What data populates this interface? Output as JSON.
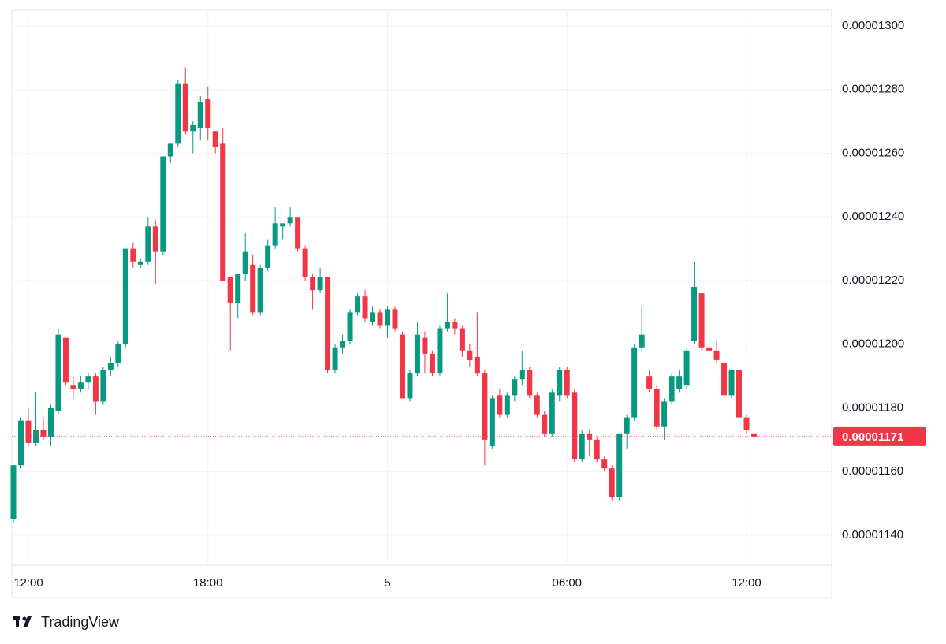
{
  "chart_data": {
    "type": "candlestick",
    "brand": "TradingView",
    "up_color": "#089981",
    "down_color": "#f23645",
    "grid": true,
    "ylim": [
      1.13e-05,
      1.305e-05
    ],
    "yticks": [
      {
        "value": 1.14e-05,
        "label": "0.00001140"
      },
      {
        "value": 1.16e-05,
        "label": "0.00001160"
      },
      {
        "value": 1.18e-05,
        "label": "0.00001180"
      },
      {
        "value": 1.2e-05,
        "label": "0.00001200"
      },
      {
        "value": 1.22e-05,
        "label": "0.00001220"
      },
      {
        "value": 1.24e-05,
        "label": "0.00001240"
      },
      {
        "value": 1.26e-05,
        "label": "0.00001260"
      },
      {
        "value": 1.28e-05,
        "label": "0.00001280"
      },
      {
        "value": 1.3e-05,
        "label": "0.00001300"
      }
    ],
    "last_price": {
      "value": 1.171e-05,
      "label": "0.00001171"
    },
    "categories": [
      null,
      null,
      "12:00",
      null,
      null,
      null,
      null,
      null,
      null,
      null,
      null,
      null,
      null,
      null,
      null,
      null,
      null,
      null,
      null,
      null,
      null,
      null,
      null,
      null,
      null,
      null,
      "18:00",
      null,
      null,
      null,
      null,
      null,
      null,
      null,
      null,
      null,
      null,
      null,
      null,
      null,
      null,
      null,
      null,
      null,
      null,
      null,
      null,
      null,
      null,
      null,
      "5",
      null,
      null,
      null,
      null,
      null,
      null,
      null,
      null,
      null,
      null,
      null,
      null,
      null,
      null,
      null,
      null,
      null,
      null,
      null,
      null,
      null,
      null,
      null,
      "06:00",
      null,
      null,
      null,
      null,
      null,
      null,
      null,
      null,
      null,
      null,
      null,
      null,
      null,
      null,
      null,
      null,
      null,
      null,
      null,
      null,
      null,
      null,
      null,
      "12:00",
      null
    ],
    "open": [
      1.145e-05,
      1.162e-05,
      1.176e-05,
      1.169e-05,
      1.173e-05,
      1.171e-05,
      1.179e-05,
      1.202e-05,
      1.187e-05,
      1.186e-05,
      1.188e-05,
      1.19e-05,
      1.182e-05,
      1.192e-05,
      1.194e-05,
      1.2e-05,
      1.23e-05,
      1.225e-05,
      1.226e-05,
      1.237e-05,
      1.229e-05,
      1.259e-05,
      1.263e-05,
      1.282e-05,
      1.267e-05,
      1.268e-05,
      1.277e-05,
      1.267e-05,
      1.263e-05,
      1.221e-05,
      1.213e-05,
      1.222e-05,
      1.225e-05,
      1.21e-05,
      1.224e-05,
      1.231e-05,
      1.237e-05,
      1.238e-05,
      1.24e-05,
      1.23e-05,
      1.221e-05,
      1.217e-05,
      1.221e-05,
      1.192e-05,
      1.199e-05,
      1.201e-05,
      1.21e-05,
      1.215e-05,
      1.207e-05,
      1.21e-05,
      1.206e-05,
      1.211e-05,
      1.203e-05,
      1.183e-05,
      1.191e-05,
      1.202e-05,
      1.197e-05,
      1.191e-05,
      1.205e-05,
      1.207e-05,
      1.205e-05,
      1.198e-05,
      1.196e-05,
      1.191e-05,
      1.168e-05,
      1.184e-05,
      1.178e-05,
      1.184e-05,
      1.189e-05,
      1.192e-05,
      1.184e-05,
      1.178e-05,
      1.172e-05,
      1.184e-05,
      1.192e-05,
      1.185e-05,
      1.164e-05,
      1.172e-05,
      1.17e-05,
      1.164e-05,
      1.161e-05,
      1.152e-05,
      1.172e-05,
      1.177e-05,
      1.199e-05,
      1.19e-05,
      1.186e-05,
      1.174e-05,
      1.182e-05,
      1.186e-05,
      1.187e-05,
      1.201e-05,
      1.216e-05,
      1.199e-05,
      1.198e-05,
      1.194e-05,
      1.184e-05,
      1.192e-05,
      1.177e-05,
      1.172e-05
    ],
    "high": [
      1.162e-05,
      1.177e-05,
      1.18e-05,
      1.185e-05,
      1.177e-05,
      1.181e-05,
      1.205e-05,
      1.202e-05,
      1.19e-05,
      1.19e-05,
      1.191e-05,
      1.191e-05,
      1.193e-05,
      1.196e-05,
      1.201e-05,
      1.23e-05,
      1.232e-05,
      1.227e-05,
      1.24e-05,
      1.239e-05,
      1.259e-05,
      1.263e-05,
      1.283e-05,
      1.287e-05,
      1.27e-05,
      1.278e-05,
      1.281e-05,
      1.267e-05,
      1.268e-05,
      1.221e-05,
      1.222e-05,
      1.235e-05,
      1.228e-05,
      1.225e-05,
      1.233e-05,
      1.243e-05,
      1.238e-05,
      1.243e-05,
      1.24e-05,
      1.231e-05,
      1.222e-05,
      1.224e-05,
      1.221e-05,
      1.2e-05,
      1.203e-05,
      1.211e-05,
      1.216e-05,
      1.217e-05,
      1.212e-05,
      1.211e-05,
      1.212e-05,
      1.212e-05,
      1.204e-05,
      1.192e-05,
      1.207e-05,
      1.204e-05,
      1.198e-05,
      1.206e-05,
      1.216e-05,
      1.208e-05,
      1.206e-05,
      1.2e-05,
      1.21e-05,
      1.192e-05,
      1.184e-05,
      1.186e-05,
      1.185e-05,
      1.19e-05,
      1.198e-05,
      1.193e-05,
      1.185e-05,
      1.179e-05,
      1.186e-05,
      1.193e-05,
      1.193e-05,
      1.186e-05,
      1.173e-05,
      1.173e-05,
      1.171e-05,
      1.165e-05,
      1.162e-05,
      1.172e-05,
      1.178e-05,
      1.2e-05,
      1.212e-05,
      1.192e-05,
      1.187e-05,
      1.183e-05,
      1.191e-05,
      1.192e-05,
      1.199e-05,
      1.226e-05,
      1.216e-05,
      1.2e-05,
      1.201e-05,
      1.195e-05,
      1.192e-05,
      1.192e-05,
      1.178e-05,
      1.172e-05
    ],
    "low": [
      1.144e-05,
      1.161e-05,
      1.168e-05,
      1.168e-05,
      1.17e-05,
      1.168e-05,
      1.178e-05,
      1.187e-05,
      1.183e-05,
      1.185e-05,
      1.186e-05,
      1.178e-05,
      1.181e-05,
      1.19e-05,
      1.193e-05,
      1.199e-05,
      1.224e-05,
      1.224e-05,
      1.225e-05,
      1.219e-05,
      1.228e-05,
      1.257e-05,
      1.262e-05,
      1.266e-05,
      1.26e-05,
      1.264e-05,
      1.264e-05,
      1.26e-05,
      1.22e-05,
      1.198e-05,
      1.208e-05,
      1.22e-05,
      1.209e-05,
      1.209e-05,
      1.223e-05,
      1.23e-05,
      1.233e-05,
      1.237e-05,
      1.229e-05,
      1.22e-05,
      1.211e-05,
      1.216e-05,
      1.191e-05,
      1.191e-05,
      1.197e-05,
      1.2e-05,
      1.209e-05,
      1.207e-05,
      1.206e-05,
      1.205e-05,
      1.202e-05,
      1.204e-05,
      1.183e-05,
      1.182e-05,
      1.19e-05,
      1.191e-05,
      1.19e-05,
      1.19e-05,
      1.204e-05,
      1.203e-05,
      1.196e-05,
      1.193e-05,
      1.19e-05,
      1.162e-05,
      1.167e-05,
      1.177e-05,
      1.177e-05,
      1.182e-05,
      1.187e-05,
      1.183e-05,
      1.177e-05,
      1.171e-05,
      1.171e-05,
      1.182e-05,
      1.183e-05,
      1.163e-05,
      1.163e-05,
      1.165e-05,
      1.163e-05,
      1.16e-05,
      1.151e-05,
      1.151e-05,
      1.167e-05,
      1.176e-05,
      1.198e-05,
      1.185e-05,
      1.173e-05,
      1.17e-05,
      1.181e-05,
      1.185e-05,
      1.186e-05,
      1.2e-05,
      1.198e-05,
      1.196e-05,
      1.194e-05,
      1.183e-05,
      1.183e-05,
      1.176e-05,
      1.172e-05,
      1.17e-05
    ],
    "close": [
      1.162e-05,
      1.176e-05,
      1.169e-05,
      1.173e-05,
      1.171e-05,
      1.18e-05,
      1.203e-05,
      1.188e-05,
      1.186e-05,
      1.188e-05,
      1.19e-05,
      1.182e-05,
      1.192e-05,
      1.194e-05,
      1.2e-05,
      1.23e-05,
      1.226e-05,
      1.226e-05,
      1.237e-05,
      1.229e-05,
      1.259e-05,
      1.263e-05,
      1.282e-05,
      1.267e-05,
      1.269e-05,
      1.276e-05,
      1.268e-05,
      1.262e-05,
      1.22e-05,
      1.213e-05,
      1.222e-05,
      1.229e-05,
      1.21e-05,
      1.224e-05,
      1.231e-05,
      1.238e-05,
      1.238e-05,
      1.24e-05,
      1.23e-05,
      1.221e-05,
      1.217e-05,
      1.221e-05,
      1.192e-05,
      1.199e-05,
      1.201e-05,
      1.21e-05,
      1.215e-05,
      1.208e-05,
      1.21e-05,
      1.206e-05,
      1.211e-05,
      1.205e-05,
      1.183e-05,
      1.191e-05,
      1.203e-05,
      1.197e-05,
      1.191e-05,
      1.205e-05,
      1.207e-05,
      1.205e-05,
      1.198e-05,
      1.195e-05,
      1.191e-05,
      1.17e-05,
      1.183e-05,
      1.178e-05,
      1.184e-05,
      1.189e-05,
      1.192e-05,
      1.184e-05,
      1.178e-05,
      1.172e-05,
      1.185e-05,
      1.192e-05,
      1.184e-05,
      1.164e-05,
      1.172e-05,
      1.17e-05,
      1.164e-05,
      1.161e-05,
      1.152e-05,
      1.172e-05,
      1.177e-05,
      1.199e-05,
      1.203e-05,
      1.186e-05,
      1.174e-05,
      1.182e-05,
      1.19e-05,
      1.19e-05,
      1.198e-05,
      1.218e-05,
      1.199e-05,
      1.198e-05,
      1.195e-05,
      1.184e-05,
      1.192e-05,
      1.177e-05,
      1.173e-05,
      1.171e-05
    ]
  }
}
